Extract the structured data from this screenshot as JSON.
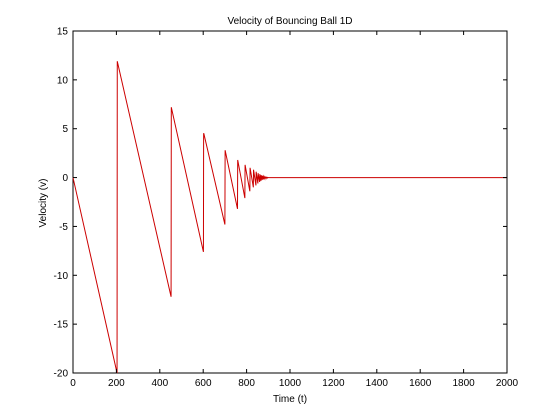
{
  "chart_data": {
    "type": "line",
    "title": "Velocity of Bouncing Ball 1D",
    "xlabel": "Time (t)",
    "ylabel": "Velocity (v)",
    "xlim": [
      0,
      2000
    ],
    "ylim": [
      -20,
      15
    ],
    "xticks": [
      0,
      200,
      400,
      600,
      800,
      1000,
      1200,
      1400,
      1600,
      1800,
      2000
    ],
    "yticks": [
      -20,
      -15,
      -10,
      -5,
      0,
      5,
      10,
      15
    ],
    "xtick_labels": [
      "0",
      "200",
      "400",
      "600",
      "800",
      "1000",
      "1200",
      "1400",
      "1600",
      "1800",
      "2000"
    ],
    "ytick_labels": [
      "-20",
      "-15",
      "-10",
      "-5",
      "0",
      "5",
      "10",
      "15"
    ],
    "grid": false,
    "line_color": "#cc0000",
    "series": [
      {
        "x": [
          0,
          203,
          204,
          452,
          453,
          601,
          602,
          603,
          700,
          701,
          758,
          759,
          792,
          793,
          815,
          816,
          831,
          832,
          843,
          844,
          852,
          853,
          860,
          861,
          866,
          867,
          872,
          873,
          878,
          879,
          884,
          885,
          890,
          891,
          896,
          897,
          900,
          2000
        ],
        "y": [
          0,
          -20,
          11.9,
          -12.2,
          7.2,
          -7.6,
          4.5,
          4.5,
          -4.8,
          2.8,
          -3.2,
          1.8,
          -2.1,
          1.3,
          -1.4,
          1.0,
          -1.0,
          0.8,
          -0.8,
          0.6,
          -0.6,
          0.45,
          -0.45,
          0.35,
          -0.35,
          0.25,
          -0.25,
          0.18,
          -0.18,
          0.12,
          -0.12,
          0.08,
          -0.08,
          0.04,
          -0.04,
          0.02,
          0,
          0
        ]
      }
    ]
  }
}
